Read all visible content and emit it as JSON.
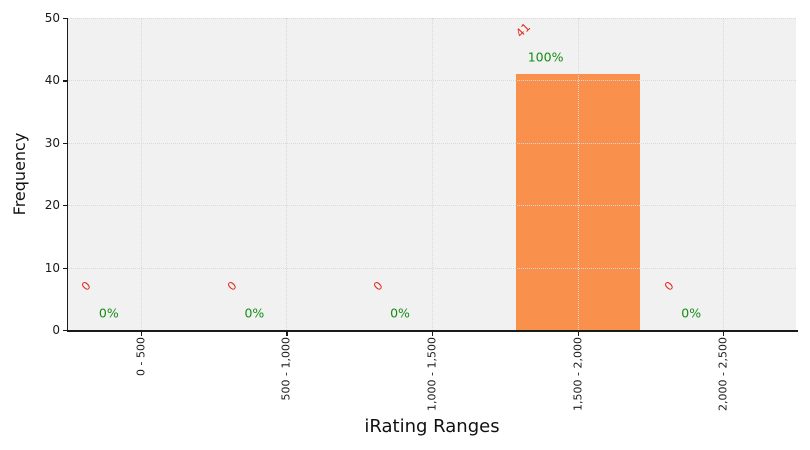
{
  "chart_data": {
    "type": "bar",
    "title": "",
    "xlabel": "iRating Ranges",
    "ylabel": "Frequency",
    "categories": [
      "0 - 500",
      "500 - 1,000",
      "1,000 - 1,500",
      "1,500 - 2,000",
      "2,000 - 2,500"
    ],
    "values": [
      0,
      0,
      0,
      41,
      0
    ],
    "value_labels": [
      "0",
      "0",
      "0",
      "41",
      "0"
    ],
    "percent_labels": [
      "0%",
      "0%",
      "0%",
      "100%",
      "0%"
    ],
    "ylim": [
      0,
      50
    ],
    "yticks": [
      0,
      10,
      20,
      30,
      40,
      50
    ],
    "grid": "dotted",
    "legend": "none",
    "colors": {
      "bar": "#f9914c",
      "value_label": "#e22a1c",
      "percent_label": "#168c16",
      "plot_background": "#f1f1f1",
      "gridline": "#d9d9d9",
      "axis": "#1a1a1a"
    }
  }
}
